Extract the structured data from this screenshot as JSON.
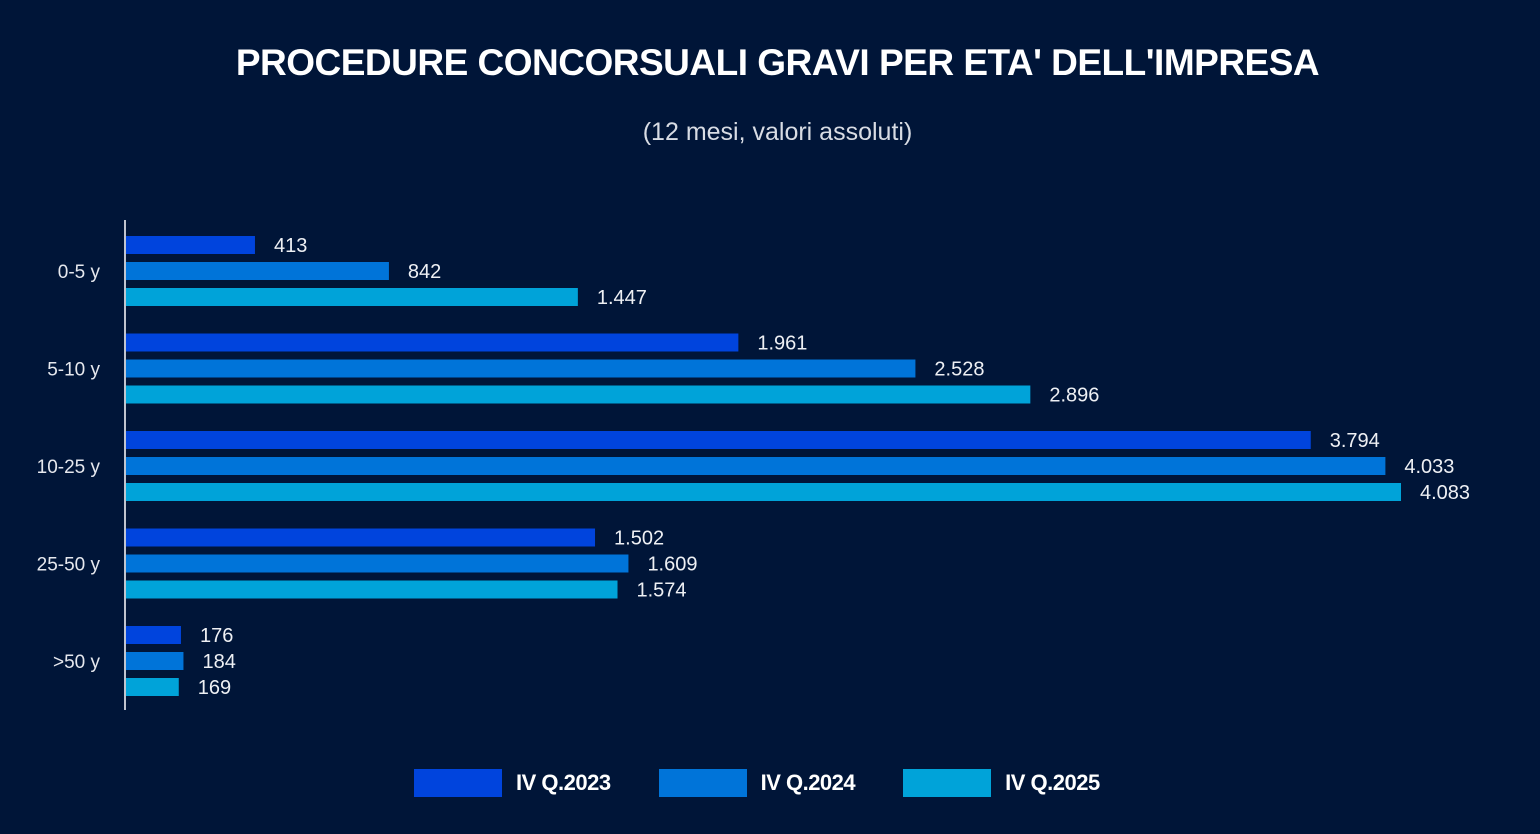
{
  "chart_data": {
    "type": "bar",
    "orientation": "horizontal",
    "title": "PROCEDURE CONCORSUALI GRAVI PER ETA' DELL'IMPRESA",
    "subtitle": "(12 mesi, valori assoluti)",
    "xlabel": "",
    "ylabel": "",
    "categories": [
      "0-5 y",
      "5-10 y",
      "10-25 y",
      "25-50 y",
      ">50 y"
    ],
    "series": [
      {
        "name": "IV Q.2023",
        "color": "#0044dd",
        "values": [
          413,
          1961,
          3794,
          1502,
          176
        ],
        "labels": [
          "413",
          "1.961",
          "3.794",
          "1.502",
          "176"
        ]
      },
      {
        "name": "IV Q.2024",
        "color": "#0074d9",
        "values": [
          842,
          2528,
          4033,
          1609,
          184
        ],
        "labels": [
          "842",
          "2.528",
          "4.033",
          "1.609",
          "184"
        ]
      },
      {
        "name": "IV Q.2025",
        "color": "#00a3d9",
        "values": [
          1447,
          2896,
          4083,
          1574,
          169
        ],
        "labels": [
          "1.447",
          "2.896",
          "4.083",
          "1.574",
          "169"
        ]
      }
    ],
    "xlim": [
      0,
      4083
    ],
    "grid": false,
    "legend_position": "bottom-center",
    "data_labels": true
  },
  "colors": {
    "background": "#001538",
    "axis": "#ffffff",
    "text": "#ffffff"
  }
}
